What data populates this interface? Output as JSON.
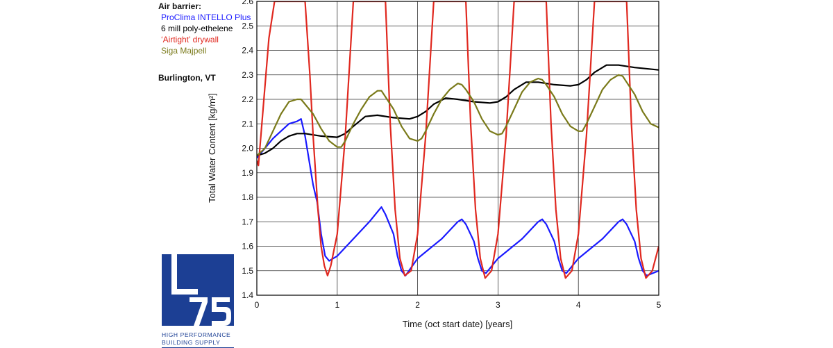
{
  "legend": {
    "header": "Air barrier:",
    "items": [
      {
        "label": "ProClima INTELLO Plus",
        "color": "#1a1aff"
      },
      {
        "label": "6 mill poly-ethelene",
        "color": "#000000"
      },
      {
        "label": "‘Airtight’ drywall",
        "color": "#e0281f"
      },
      {
        "label": "Siga Majpell",
        "color": "#7a7a1a"
      }
    ]
  },
  "location": "Burlington, VT",
  "logo": {
    "mark": "475",
    "line1": "HIGH PERFORMANCE",
    "line2": "BUILDING SUPPLY",
    "color": "#1c3f94"
  },
  "chart_data": {
    "type": "line",
    "xlabel": "Time (oct start date) [years]",
    "ylabel": "Total Water Content [kg/m²]",
    "xlim": [
      0,
      5
    ],
    "ylim": [
      1.4,
      2.6
    ],
    "xticks": [
      "0",
      "1",
      "2",
      "3",
      "4",
      "5"
    ],
    "yticks": [
      "1.4",
      "1.5",
      "1.6",
      "1.7",
      "1.8",
      "1.9",
      "2.0",
      "2.1",
      "2.2",
      "2.3",
      "2.4",
      "2.5",
      "2.6"
    ],
    "grid": true,
    "series": [
      {
        "name": "ProClima INTELLO Plus",
        "color": "#1a1aff",
        "x": [
          0,
          0.05,
          0.1,
          0.2,
          0.3,
          0.4,
          0.5,
          0.55,
          0.6,
          0.65,
          0.7,
          0.75,
          0.8,
          0.85,
          0.9,
          1.0,
          1.2,
          1.4,
          1.5,
          1.55,
          1.6,
          1.7,
          1.75,
          1.8,
          1.85,
          2.0,
          2.3,
          2.5,
          2.55,
          2.6,
          2.7,
          2.75,
          2.8,
          2.85,
          3.0,
          3.3,
          3.5,
          3.55,
          3.6,
          3.7,
          3.75,
          3.8,
          3.85,
          4.0,
          4.3,
          4.5,
          4.55,
          4.6,
          4.7,
          4.75,
          4.8,
          4.85,
          5.0
        ],
        "y": [
          1.96,
          1.98,
          2.0,
          2.04,
          2.07,
          2.1,
          2.11,
          2.12,
          2.05,
          1.95,
          1.85,
          1.78,
          1.65,
          1.56,
          1.54,
          1.56,
          1.63,
          1.7,
          1.74,
          1.76,
          1.73,
          1.65,
          1.56,
          1.5,
          1.48,
          1.55,
          1.63,
          1.7,
          1.71,
          1.69,
          1.62,
          1.55,
          1.5,
          1.49,
          1.55,
          1.63,
          1.7,
          1.71,
          1.69,
          1.62,
          1.55,
          1.5,
          1.49,
          1.55,
          1.63,
          1.7,
          1.71,
          1.69,
          1.62,
          1.55,
          1.5,
          1.48,
          1.5
        ]
      },
      {
        "name": "6 mill poly-ethelene",
        "color": "#000000",
        "x": [
          0,
          0.1,
          0.2,
          0.3,
          0.4,
          0.5,
          0.6,
          0.8,
          1.0,
          1.1,
          1.2,
          1.35,
          1.5,
          1.7,
          1.9,
          2.0,
          2.1,
          2.2,
          2.35,
          2.5,
          2.7,
          2.9,
          3.0,
          3.1,
          3.2,
          3.35,
          3.5,
          3.7,
          3.9,
          4.0,
          4.1,
          4.2,
          4.35,
          4.5,
          4.7,
          5.0
        ],
        "y": [
          1.97,
          1.98,
          2.0,
          2.03,
          2.05,
          2.06,
          2.06,
          2.05,
          2.045,
          2.06,
          2.09,
          2.13,
          2.135,
          2.125,
          2.12,
          2.13,
          2.15,
          2.18,
          2.205,
          2.2,
          2.19,
          2.185,
          2.19,
          2.21,
          2.24,
          2.27,
          2.27,
          2.26,
          2.255,
          2.26,
          2.28,
          2.31,
          2.34,
          2.34,
          2.33,
          2.32
        ]
      },
      {
        "name": "‘Airtight’ drywall",
        "color": "#e0281f",
        "x": [
          0,
          0.02,
          0.05,
          0.1,
          0.15,
          0.22,
          0.6,
          0.66,
          0.7,
          0.76,
          0.8,
          0.84,
          0.88,
          0.92,
          1.0,
          1.1,
          1.2,
          1.6,
          1.66,
          1.72,
          1.78,
          1.84,
          1.92,
          2.0,
          2.1,
          2.2,
          2.6,
          2.66,
          2.72,
          2.78,
          2.84,
          2.92,
          3.0,
          3.1,
          3.2,
          3.6,
          3.66,
          3.72,
          3.78,
          3.84,
          3.92,
          4.0,
          4.1,
          4.2,
          4.6,
          4.66,
          4.72,
          4.78,
          4.84,
          4.92,
          5.0
        ],
        "y": [
          1.95,
          1.93,
          2.05,
          2.25,
          2.45,
          2.6,
          2.6,
          2.3,
          2.05,
          1.75,
          1.6,
          1.52,
          1.48,
          1.52,
          1.65,
          2.05,
          2.6,
          2.6,
          2.1,
          1.75,
          1.55,
          1.48,
          1.5,
          1.65,
          2.05,
          2.6,
          2.6,
          2.1,
          1.75,
          1.55,
          1.47,
          1.5,
          1.65,
          2.05,
          2.6,
          2.6,
          2.1,
          1.75,
          1.55,
          1.47,
          1.5,
          1.65,
          2.05,
          2.6,
          2.6,
          2.1,
          1.75,
          1.55,
          1.47,
          1.5,
          1.6
        ]
      },
      {
        "name": "Siga Majpell",
        "color": "#7a7a1a",
        "x": [
          0,
          0.1,
          0.2,
          0.3,
          0.4,
          0.5,
          0.55,
          0.6,
          0.7,
          0.8,
          0.9,
          1.0,
          1.05,
          1.1,
          1.2,
          1.3,
          1.4,
          1.5,
          1.55,
          1.6,
          1.7,
          1.8,
          1.9,
          2.0,
          2.05,
          2.1,
          2.2,
          2.3,
          2.4,
          2.5,
          2.55,
          2.6,
          2.7,
          2.8,
          2.9,
          3.0,
          3.05,
          3.1,
          3.2,
          3.3,
          3.4,
          3.5,
          3.55,
          3.6,
          3.7,
          3.8,
          3.9,
          4.0,
          4.05,
          4.1,
          4.2,
          4.3,
          4.4,
          4.5,
          4.55,
          4.6,
          4.7,
          4.8,
          4.9,
          5.0
        ],
        "y": [
          1.97,
          2.0,
          2.07,
          2.14,
          2.19,
          2.2,
          2.2,
          2.18,
          2.14,
          2.08,
          2.03,
          2.005,
          2.005,
          2.03,
          2.1,
          2.16,
          2.21,
          2.235,
          2.235,
          2.21,
          2.16,
          2.09,
          2.04,
          2.03,
          2.04,
          2.07,
          2.14,
          2.2,
          2.24,
          2.265,
          2.26,
          2.24,
          2.19,
          2.12,
          2.07,
          2.055,
          2.06,
          2.09,
          2.16,
          2.23,
          2.27,
          2.285,
          2.28,
          2.26,
          2.21,
          2.14,
          2.09,
          2.07,
          2.07,
          2.1,
          2.17,
          2.24,
          2.28,
          2.3,
          2.295,
          2.27,
          2.22,
          2.15,
          2.1,
          2.085
        ]
      }
    ]
  }
}
